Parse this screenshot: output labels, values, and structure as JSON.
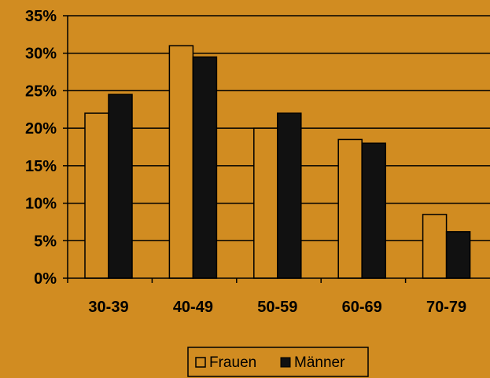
{
  "chart_data": {
    "type": "bar",
    "categories": [
      "30-39",
      "40-49",
      "50-59",
      "60-69",
      "70-79"
    ],
    "series": [
      {
        "name": "Frauen",
        "values": [
          22,
          31,
          20,
          18.5,
          8.5
        ],
        "color": "#d18c21"
      },
      {
        "name": "Männer",
        "values": [
          24.5,
          29.5,
          22,
          18,
          6.2
        ],
        "color": "#111111"
      }
    ],
    "ylim": [
      0,
      35
    ],
    "yticks": [
      "0%",
      "5%",
      "10%",
      "15%",
      "20%",
      "25%",
      "30%",
      "35%"
    ],
    "grid": true,
    "legend_position": "bottom-center",
    "background": "#d18c21"
  }
}
